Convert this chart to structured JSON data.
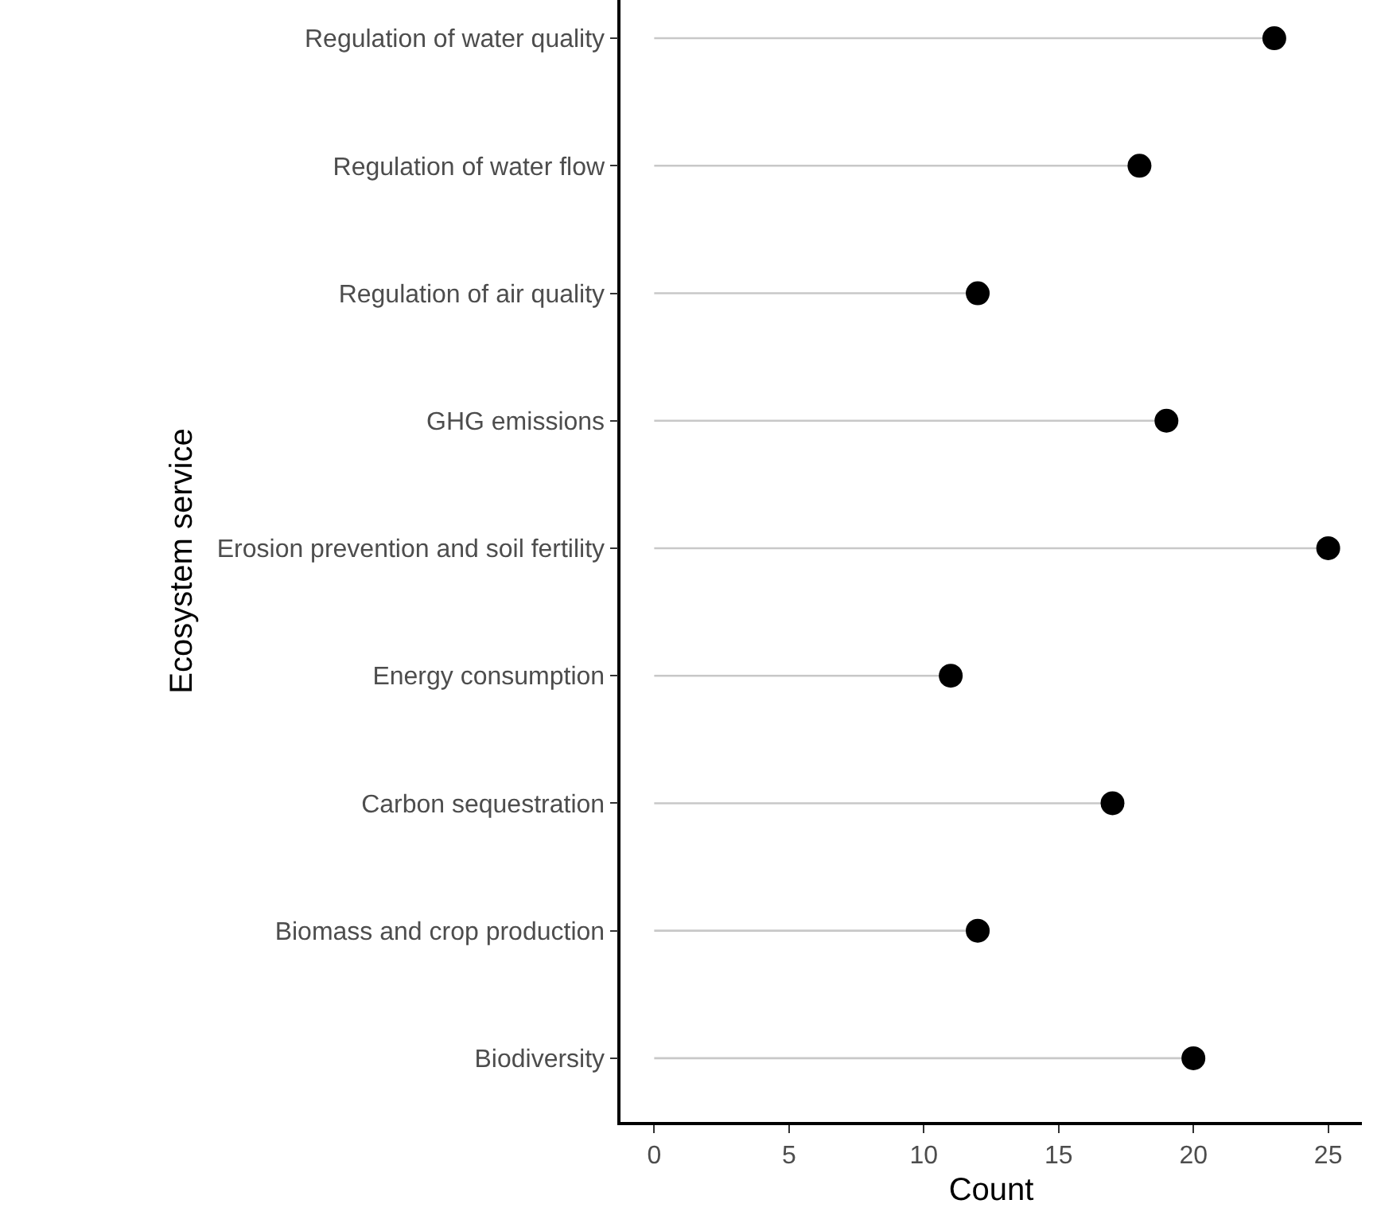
{
  "chart_data": {
    "type": "lollipop",
    "orientation": "horizontal",
    "xlabel": "Count",
    "ylabel": "Ecosystem service",
    "categories": [
      "Regulation of water quality",
      "Regulation of water flow",
      "Regulation of air quality",
      "GHG emissions",
      "Erosion prevention and soil fertility",
      "Energy consumption",
      "Carbon sequestration",
      "Biomass and crop production",
      "Biodiversity"
    ],
    "values": [
      23,
      18,
      12,
      19,
      25,
      11,
      17,
      12,
      20
    ],
    "color": "#000000",
    "marker": "circle",
    "xlim": [
      -1.25,
      26.25
    ],
    "xticks": [
      0,
      5,
      10,
      15,
      20,
      25
    ],
    "grid": false
  }
}
